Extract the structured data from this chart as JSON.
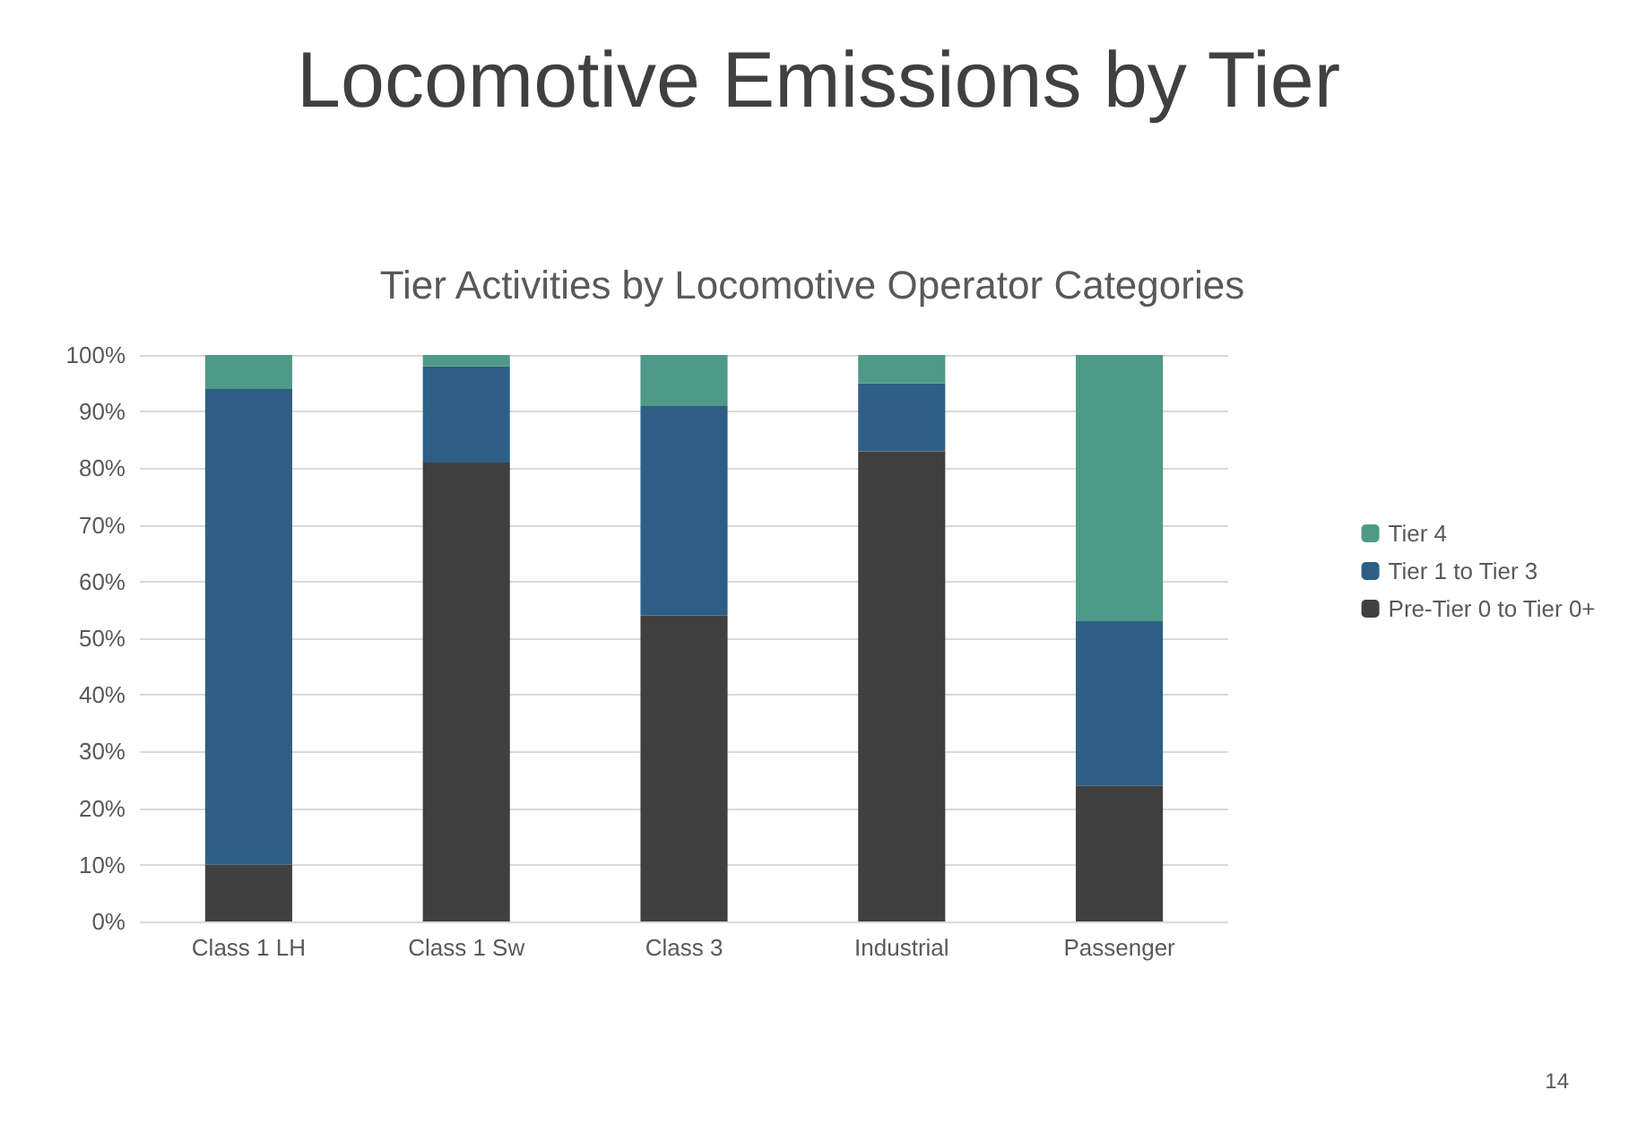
{
  "chart_data": {
    "type": "bar",
    "title": "Locomotive Emissions by Tier",
    "subtitle": "Tier Activities by Locomotive Operator Categories",
    "categories": [
      "Class 1 LH",
      "Class 1 Sw",
      "Class 3",
      "Industrial",
      "Passenger"
    ],
    "series": [
      {
        "name": "Pre-Tier 0 to Tier 0+",
        "color": "#404040",
        "values": [
          10,
          81,
          54,
          83,
          24
        ]
      },
      {
        "name": "Tier 1 to Tier 3",
        "color": "#2e5e85",
        "values": [
          84,
          17,
          37,
          12,
          29
        ]
      },
      {
        "name": "Tier 4",
        "color": "#4e9a87",
        "values": [
          6,
          2,
          9,
          5,
          47
        ]
      }
    ],
    "stacked": true,
    "ylim": [
      0,
      100
    ],
    "yticks": [
      {
        "value": 0,
        "label": "0%"
      },
      {
        "value": 10,
        "label": "10%"
      },
      {
        "value": 20,
        "label": "20%"
      },
      {
        "value": 30,
        "label": "30%"
      },
      {
        "value": 40,
        "label": "40%"
      },
      {
        "value": 50,
        "label": "50%"
      },
      {
        "value": 60,
        "label": "60%"
      },
      {
        "value": 70,
        "label": "70%"
      },
      {
        "value": 80,
        "label": "80%"
      },
      {
        "value": 90,
        "label": "90%"
      },
      {
        "value": 100,
        "label": "100%"
      }
    ],
    "grid": "y",
    "legend": "right",
    "annotations": [
      "14"
    ]
  }
}
